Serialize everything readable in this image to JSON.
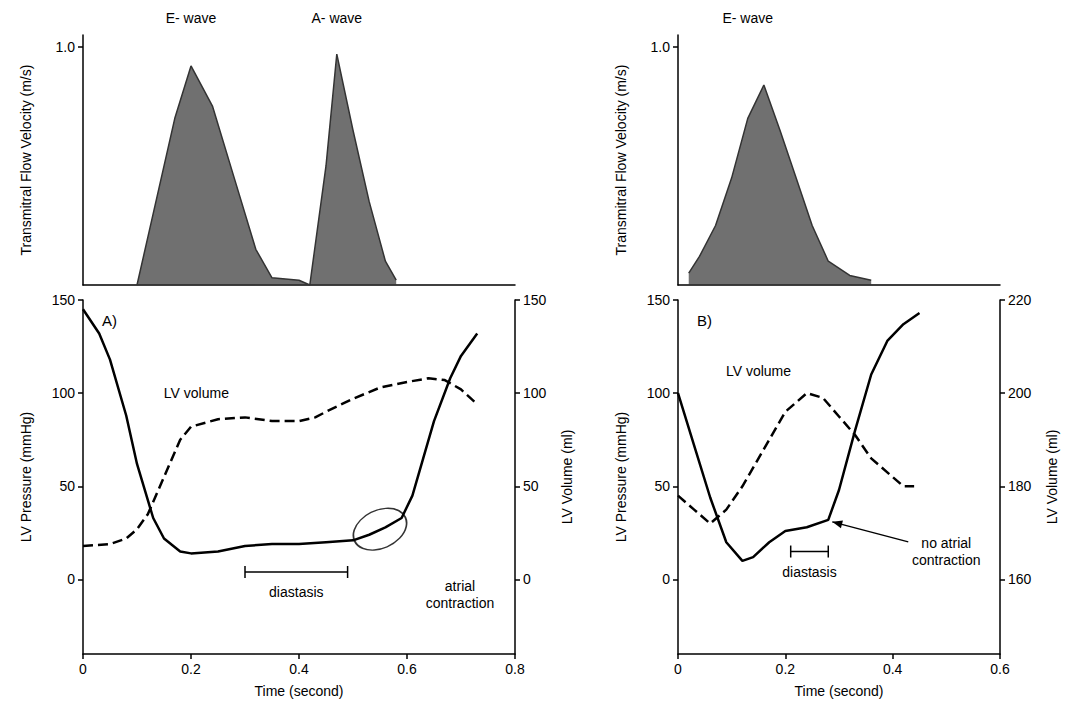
{
  "chart_data": [
    {
      "type": "area",
      "ylabel": "Transmitral Flow Velocity (m/s)",
      "xlim": [
        0,
        0.8
      ],
      "ylim": [
        0,
        1.05
      ],
      "yticks": [
        {
          "value": 1,
          "label": "1.0"
        }
      ],
      "tick_labels": "y",
      "grid": false,
      "series": [
        {
          "color": "#333333",
          "x": [
            0.1,
            0.13,
            0.17,
            0.2,
            0.24,
            0.28,
            0.32,
            0.35,
            0.4,
            0.42,
            0.45,
            0.47,
            0.5,
            0.53,
            0.56,
            0.58
          ],
          "values": [
            0,
            0.3,
            0.7,
            0.92,
            0.75,
            0.45,
            0.15,
            0.03,
            0.02,
            0,
            0.5,
            0.97,
            0.65,
            0.35,
            0.1,
            0.02
          ]
        }
      ],
      "annotations": [
        {
          "text": "E- wave",
          "x": 0.2
        },
        {
          "text": "A- wave",
          "x": 0.47
        }
      ]
    },
    {
      "type": "line",
      "title": "A)",
      "xlabel": "Time (second)",
      "ylabel": "LV Pressure (mmHg)",
      "y2label": "LV Volume (ml)",
      "xlim": [
        0,
        0.8
      ],
      "xticks": [
        0,
        0.2,
        0.4,
        0.6,
        0.8
      ],
      "ylim": [
        -40,
        150
      ],
      "yticks": [
        0,
        50,
        100,
        150
      ],
      "y2lim": [
        -40,
        150
      ],
      "y2ticks": [
        0,
        50,
        100,
        150
      ],
      "grid": false,
      "series": [
        {
          "color": "#000000",
          "line_style": "solid",
          "x": [
            0,
            0.03,
            0.05,
            0.08,
            0.1,
            0.13,
            0.15,
            0.18,
            0.2,
            0.25,
            0.3,
            0.35,
            0.4,
            0.45,
            0.5,
            0.53,
            0.56,
            0.59,
            0.61,
            0.63,
            0.65,
            0.68,
            0.7,
            0.73
          ],
          "values": [
            145,
            132,
            118,
            88,
            62,
            33,
            22,
            15,
            14,
            15,
            18,
            19,
            19,
            20,
            21,
            24,
            28,
            33,
            45,
            65,
            85,
            108,
            120,
            132
          ]
        },
        {
          "color": "#000000",
          "line_style": "dashed",
          "axis": "y2",
          "x": [
            0,
            0.05,
            0.08,
            0.1,
            0.12,
            0.15,
            0.18,
            0.2,
            0.25,
            0.3,
            0.35,
            0.4,
            0.43,
            0.45,
            0.5,
            0.55,
            0.6,
            0.64,
            0.67,
            0.7,
            0.73
          ],
          "values": [
            18,
            19,
            22,
            27,
            35,
            55,
            75,
            82,
            86,
            87,
            85,
            85,
            87,
            90,
            97,
            103,
            106,
            108,
            107,
            102,
            94
          ]
        }
      ],
      "annotations": [
        {
          "text": "LV volume",
          "x": 0.21,
          "y": 100
        },
        {
          "text": "diastasis",
          "x": [
            0.3,
            0.49
          ],
          "y": 4,
          "marker": "bracket"
        },
        {
          "text": "atrial contraction",
          "x": 0.55,
          "y": 27,
          "marker": "ellipse"
        }
      ]
    },
    {
      "type": "area",
      "ylabel": "Transmitral Flow Velocity (m/s)",
      "xlim": [
        0,
        0.6
      ],
      "ylim": [
        0,
        1.05
      ],
      "yticks": [
        {
          "value": 1,
          "label": "1.0"
        }
      ],
      "tick_labels": "y",
      "grid": false,
      "series": [
        {
          "color": "#333333",
          "x": [
            0.02,
            0.04,
            0.07,
            0.1,
            0.13,
            0.16,
            0.19,
            0.22,
            0.25,
            0.28,
            0.32,
            0.36
          ],
          "values": [
            0.05,
            0.12,
            0.25,
            0.45,
            0.7,
            0.84,
            0.65,
            0.45,
            0.25,
            0.1,
            0.04,
            0.02
          ]
        }
      ],
      "annotations": [
        {
          "text": "E- wave",
          "x": 0.13
        }
      ]
    },
    {
      "type": "line",
      "title": "B)",
      "xlabel": "Time (second)",
      "ylabel": "LV Pressure (mmHg)",
      "y2label": "LV Volume (ml)",
      "xlim": [
        0,
        0.6
      ],
      "xticks": [
        0,
        0.2,
        0.4,
        0.6
      ],
      "ylim": [
        -40,
        150
      ],
      "yticks": [
        0,
        50,
        100,
        150
      ],
      "y2lim": [
        144,
        220
      ],
      "y2ticks": [
        160,
        180,
        200,
        220
      ],
      "grid": false,
      "series": [
        {
          "color": "#000000",
          "line_style": "solid",
          "x": [
            0,
            0.03,
            0.06,
            0.09,
            0.12,
            0.14,
            0.17,
            0.2,
            0.24,
            0.28,
            0.3,
            0.33,
            0.36,
            0.39,
            0.42,
            0.45
          ],
          "values": [
            100,
            72,
            44,
            20,
            10,
            12,
            20,
            26,
            28,
            32,
            48,
            80,
            110,
            128,
            137,
            143
          ]
        },
        {
          "color": "#000000",
          "line_style": "dashed",
          "axis": "y2",
          "x": [
            0,
            0.03,
            0.06,
            0.09,
            0.12,
            0.16,
            0.2,
            0.24,
            0.27,
            0.3,
            0.33,
            0.36,
            0.39,
            0.42,
            0.44
          ],
          "values": [
            178,
            175,
            172,
            175,
            180,
            188,
            196,
            200,
            199,
            195,
            191,
            186,
            183,
            180,
            180
          ]
        }
      ],
      "annotations": [
        {
          "text": "LV volume",
          "x": 0.15,
          "y": 112
        },
        {
          "text": "diastasis",
          "x": [
            0.21,
            0.28
          ],
          "y": 15,
          "marker": "bracket"
        },
        {
          "text": "no atrial contraction",
          "x": 0.28,
          "y": 32,
          "marker": "arrow"
        }
      ]
    }
  ]
}
